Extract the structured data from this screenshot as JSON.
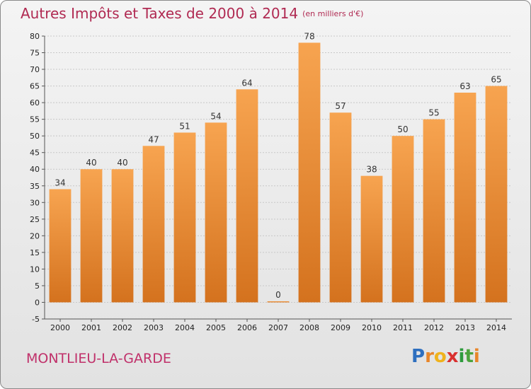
{
  "title": "Autres Impôts et Taxes de 2000 à 2014",
  "unit": "(en milliers d'€)",
  "commune": "MONTLIEU-LA-GARDE",
  "logo": "Proxiti",
  "colors": {
    "bar": "#f0943a",
    "bar_dark": "#d4721e",
    "title": "#b02a52",
    "grid": "#c8c8c8"
  },
  "chart_data": {
    "type": "bar",
    "categories": [
      "2000",
      "2001",
      "2002",
      "2003",
      "2004",
      "2005",
      "2006",
      "2007",
      "2008",
      "2009",
      "2010",
      "2011",
      "2012",
      "2013",
      "2014"
    ],
    "values": [
      34,
      40,
      40,
      47,
      51,
      54,
      64,
      0,
      78,
      57,
      38,
      50,
      55,
      63,
      65
    ],
    "title": "Autres Impôts et Taxes de 2000 à 2014",
    "ylim": [
      -5,
      80
    ],
    "yticks": [
      -5,
      0,
      5,
      10,
      15,
      20,
      25,
      30,
      35,
      40,
      45,
      50,
      55,
      60,
      65,
      70,
      75,
      80
    ],
    "grid": true
  }
}
